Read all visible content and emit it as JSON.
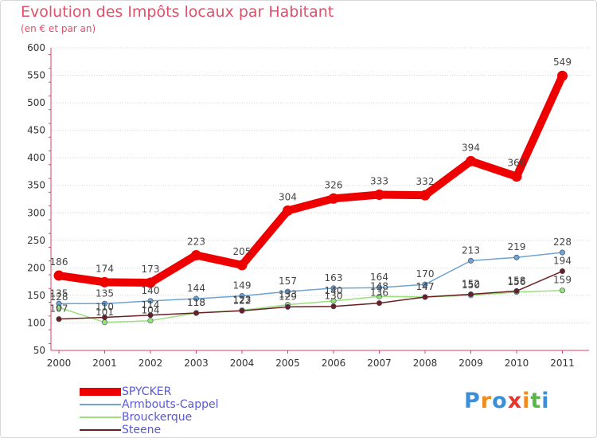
{
  "title": "Evolution des Impôts locaux par Habitant",
  "subtitle": "(en € et par an)",
  "logo_text": "Proxiti",
  "logo_colors": [
    "#3a8fd8",
    "#f08c1e",
    "#3a8fd8",
    "#e8342c",
    "#f08c1e",
    "#5ab848",
    "#3a8fd8"
  ],
  "chart_data": {
    "type": "line",
    "title": "Evolution des Impôts locaux par Habitant",
    "subtitle": "(en € et par an)",
    "xlabel": "",
    "ylabel": "",
    "x": [
      "2000",
      "2001",
      "2002",
      "2003",
      "2004",
      "2005",
      "2006",
      "2007",
      "2008",
      "2009",
      "2010",
      "2011"
    ],
    "ylim": [
      50,
      600
    ],
    "yticks": [
      50,
      100,
      150,
      200,
      250,
      300,
      350,
      400,
      450,
      500,
      550,
      600
    ],
    "grid": "horizontal",
    "legend_position": "bottom-left",
    "series": [
      {
        "name": "SPYCKER",
        "color": "#ee0000",
        "values": [
          186,
          174,
          173,
          223,
          205,
          304,
          326,
          333,
          332,
          394,
          366,
          549
        ]
      },
      {
        "name": "Armbouts-Cappel",
        "color": "#6fa3d0",
        "values": [
          135,
          135,
          140,
          144,
          149,
          157,
          163,
          164,
          170,
          213,
          219,
          228
        ]
      },
      {
        "name": "Brouckerque",
        "color": "#99e07a",
        "values": [
          128,
          101,
          104,
          118,
          123,
          133,
          140,
          148,
          147,
          150,
          156,
          159
        ]
      },
      {
        "name": "Steene",
        "color": "#6b1f22",
        "values": [
          107,
          110,
          114,
          118,
          122,
          129,
          130,
          136,
          147,
          152,
          158,
          194
        ]
      }
    ]
  }
}
